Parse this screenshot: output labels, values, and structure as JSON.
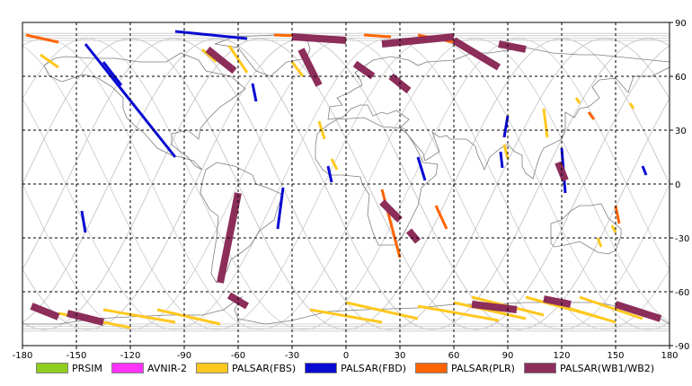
{
  "chart_data": {
    "type": "map",
    "projection": "equirectangular",
    "xlim": [
      -180,
      180
    ],
    "ylim": [
      -90,
      90
    ],
    "x_ticks": [
      -180,
      -150,
      -120,
      -90,
      -60,
      -30,
      0,
      30,
      60,
      90,
      120,
      150,
      180
    ],
    "y_ticks": [
      90,
      60,
      30,
      0,
      -30,
      -60,
      -90
    ],
    "grid": true,
    "legend_position": "bottom",
    "colors": {
      "land_outline": "#7f7f7f",
      "orbit_tracks": "#c8c8c8",
      "grid": "#000000"
    },
    "series": [
      {
        "name": "PRSIM",
        "color": "#8fce1e",
        "swaths": []
      },
      {
        "name": "AVNIR-2",
        "color": "#ff33ff",
        "swaths": []
      },
      {
        "name": "PALSAR(FBS)",
        "color": "#ffc81e",
        "swaths": [
          [
            [
              -170,
              72
            ],
            [
              -160,
              65
            ]
          ],
          [
            [
              -80,
              75
            ],
            [
              -72,
              68
            ]
          ],
          [
            [
              -65,
              77
            ],
            [
              -55,
              62
            ]
          ],
          [
            [
              -30,
              68
            ],
            [
              -24,
              60
            ]
          ],
          [
            [
              -15,
              35
            ],
            [
              -12,
              25
            ]
          ],
          [
            [
              -8,
              14
            ],
            [
              -5,
              8
            ]
          ],
          [
            [
              -105,
              -70
            ],
            [
              -70,
              -78
            ]
          ],
          [
            [
              -135,
              -70
            ],
            [
              -95,
              -77
            ]
          ],
          [
            [
              -160,
              -72
            ],
            [
              -120,
              -80
            ]
          ],
          [
            [
              -20,
              -70
            ],
            [
              20,
              -77
            ]
          ],
          [
            [
              0,
              -66
            ],
            [
              40,
              -75
            ]
          ],
          [
            [
              40,
              -68
            ],
            [
              85,
              -76
            ]
          ],
          [
            [
              60,
              -66
            ],
            [
              100,
              -75
            ]
          ],
          [
            [
              70,
              -63
            ],
            [
              110,
              -73
            ]
          ],
          [
            [
              100,
              -63
            ],
            [
              140,
              -74
            ]
          ],
          [
            [
              110,
              -65
            ],
            [
              150,
              -77
            ]
          ],
          [
            [
              130,
              -63
            ],
            [
              165,
              -75
            ]
          ],
          [
            [
              110,
              42
            ],
            [
              112,
              26
            ]
          ],
          [
            [
              128,
              48
            ],
            [
              130,
              45
            ]
          ],
          [
            [
              158,
              45
            ],
            [
              160,
              42
            ]
          ],
          [
            [
              140,
              -30
            ],
            [
              142,
              -35
            ]
          ],
          [
            [
              148,
              -23
            ],
            [
              150,
              -27
            ]
          ],
          [
            [
              88,
              22
            ],
            [
              90,
              14
            ]
          ]
        ]
      },
      {
        "name": "PALSAR(FBD)",
        "color": "#0a0ad2",
        "swaths": [
          [
            [
              -145,
              78
            ],
            [
              -95,
              15
            ]
          ],
          [
            [
              -135,
              68
            ],
            [
              -125,
              55
            ]
          ],
          [
            [
              -50,
              46
            ],
            [
              -52,
              56
            ]
          ],
          [
            [
              -35,
              -2
            ],
            [
              -38,
              -25
            ]
          ],
          [
            [
              -147,
              -15
            ],
            [
              -145,
              -27
            ]
          ],
          [
            [
              -95,
              85
            ],
            [
              -55,
              81
            ]
          ],
          [
            [
              -10,
              10
            ],
            [
              -8,
              1
            ]
          ],
          [
            [
              40,
              15
            ],
            [
              44,
              2
            ]
          ],
          [
            [
              120,
              20
            ],
            [
              122,
              -5
            ]
          ],
          [
            [
              90,
              38
            ],
            [
              88,
              26
            ]
          ],
          [
            [
              86,
              18
            ],
            [
              87,
              9
            ]
          ],
          [
            [
              165,
              10
            ],
            [
              167,
              5
            ]
          ]
        ]
      },
      {
        "name": "PALSAR(PLR)",
        "color": "#ff6400",
        "swaths": [
          [
            [
              -178,
              83
            ],
            [
              -160,
              79
            ]
          ],
          [
            [
              20,
              -3
            ],
            [
              30,
              -41
            ]
          ],
          [
            [
              50,
              -12
            ],
            [
              56,
              -25
            ]
          ],
          [
            [
              10,
              83
            ],
            [
              25,
              82
            ]
          ],
          [
            [
              40,
              83
            ],
            [
              60,
              79
            ]
          ],
          [
            [
              -40,
              83
            ],
            [
              -10,
              82
            ]
          ],
          [
            [
              150,
              -12
            ],
            [
              152,
              -22
            ]
          ],
          [
            [
              135,
              40
            ],
            [
              138,
              36
            ]
          ]
        ]
      },
      {
        "name": "PALSAR(WB1/WB2)",
        "color": "#8c2d5a",
        "swaths": [
          [
            [
              -77,
              75
            ],
            [
              -62,
              63
            ]
          ],
          [
            [
              -25,
              75
            ],
            [
              -15,
              55
            ]
          ],
          [
            [
              5,
              67
            ],
            [
              15,
              60
            ]
          ],
          [
            [
              25,
              60
            ],
            [
              35,
              52
            ]
          ],
          [
            [
              20,
              78
            ],
            [
              60,
              82
            ]
          ],
          [
            [
              60,
              80
            ],
            [
              85,
              65
            ]
          ],
          [
            [
              85,
              78
            ],
            [
              100,
              75
            ]
          ],
          [
            [
              -30,
              82
            ],
            [
              0,
              80
            ]
          ],
          [
            [
              -60,
              -5
            ],
            [
              -70,
              -55
            ]
          ],
          [
            [
              20,
              -10
            ],
            [
              30,
              -20
            ]
          ],
          [
            [
              35,
              -26
            ],
            [
              40,
              -32
            ]
          ],
          [
            [
              -65,
              -62
            ],
            [
              -55,
              -68
            ]
          ],
          [
            [
              -175,
              -68
            ],
            [
              -160,
              -74
            ]
          ],
          [
            [
              -155,
              -72
            ],
            [
              -135,
              -77
            ]
          ],
          [
            [
              70,
              -67
            ],
            [
              95,
              -70
            ]
          ],
          [
            [
              110,
              -64
            ],
            [
              125,
              -67
            ]
          ],
          [
            [
              150,
              -67
            ],
            [
              175,
              -75
            ]
          ],
          [
            [
              118,
              12
            ],
            [
              122,
              2
            ]
          ]
        ]
      }
    ]
  }
}
